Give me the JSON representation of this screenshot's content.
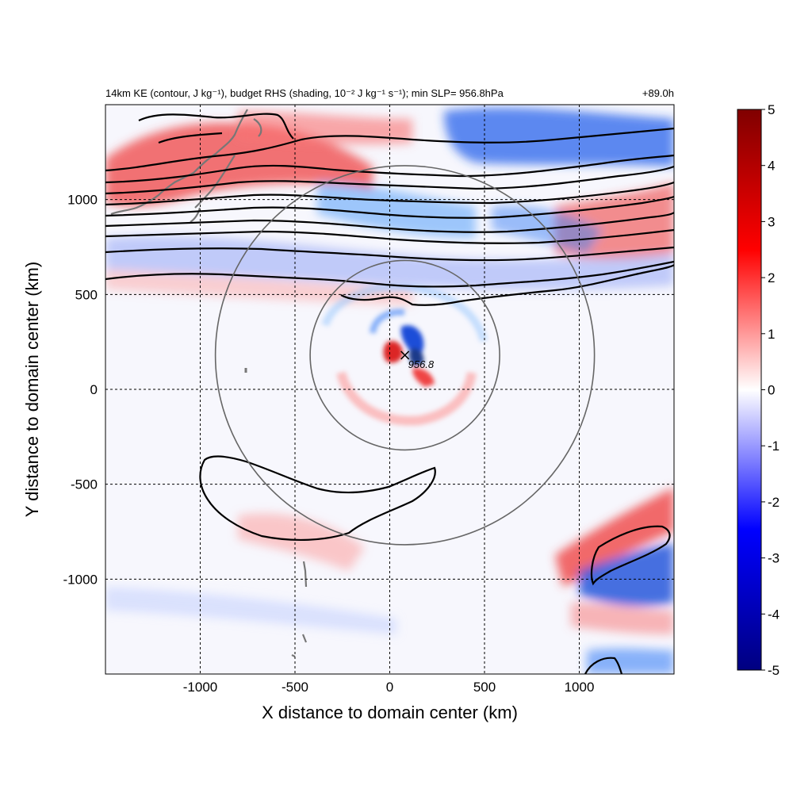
{
  "chart_data": {
    "type": "heatmap",
    "title_left": "14km KE (contour, J kg⁻¹), budget RHS (shading, 10⁻² J kg⁻¹ s⁻¹); min SLP= 956.8hPa",
    "title_right": "+89.0h",
    "xlabel": "X distance to domain center (km)",
    "ylabel": "Y distance to domain center (km)",
    "xlim": [
      -1500,
      1500
    ],
    "ylim": [
      -1500,
      1500
    ],
    "x_ticks": [
      -1000,
      -500,
      0,
      500,
      1000
    ],
    "y_ticks": [
      -1000,
      -500,
      0,
      500,
      1000
    ],
    "x_tick_labels": [
      "-1000",
      "-500",
      "0",
      "500",
      "1000"
    ],
    "y_tick_labels": [
      "-1000",
      "-500",
      "0",
      "500",
      "1000"
    ],
    "grid": "dashed",
    "colorbar": {
      "min": -5,
      "max": 5,
      "ticks": [
        5,
        4,
        3,
        2,
        1,
        0,
        -1,
        -2,
        -3,
        -4,
        -5
      ],
      "tick_labels": [
        "5",
        "4",
        "3",
        "2",
        "1",
        "0",
        "-1",
        "-2",
        "-3",
        "-4",
        "-5"
      ],
      "colors": [
        "#000080",
        "#0000ff",
        "#ffffff",
        "#ff0000",
        "#800000"
      ]
    },
    "storm_center": {
      "x": 80,
      "y": 180,
      "label": "956.8"
    },
    "range_circles": [
      {
        "center_x": 80,
        "center_y": 180,
        "radius_km": 500
      },
      {
        "center_x": 80,
        "center_y": 180,
        "radius_km": 1000
      }
    ]
  }
}
